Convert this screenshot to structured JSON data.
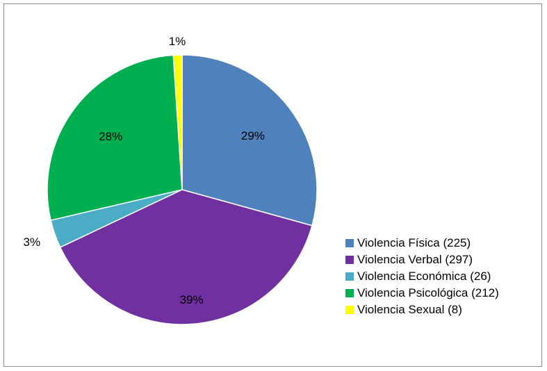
{
  "chart_data": {
    "type": "pie",
    "title": "",
    "categories": [
      "Violencia Física (225)",
      "Violencia Verbal (297)",
      "Violencia Económica (26)",
      "Violencia Psicológica (212)",
      "Violencia Sexual (8)"
    ],
    "values": [
      225,
      297,
      26,
      212,
      8
    ],
    "percent_labels": [
      "29%",
      "39%",
      "3%",
      "28%",
      "1%"
    ],
    "colors": [
      "#4f81bd",
      "#7030a0",
      "#4bacc6",
      "#00b050",
      "#ffff00"
    ],
    "legend_position": "right",
    "start_angle": "12 o'clock, clockwise"
  }
}
